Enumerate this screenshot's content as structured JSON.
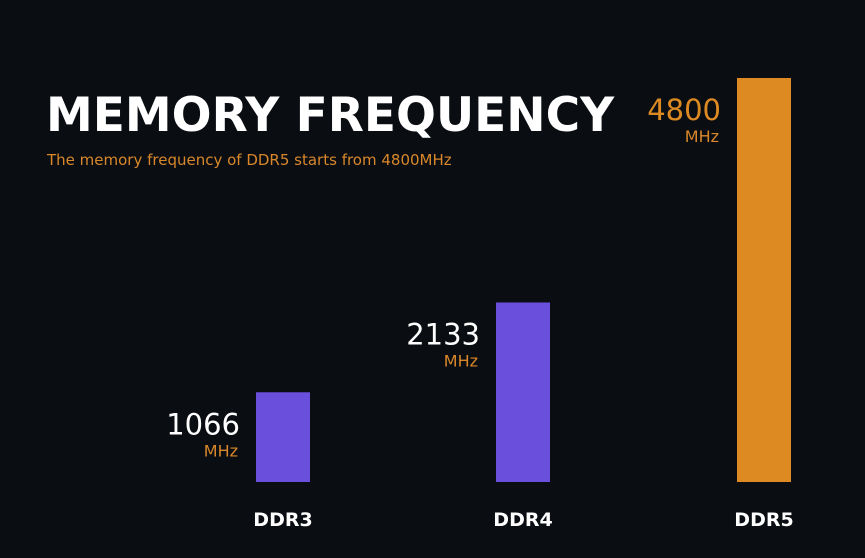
{
  "title": "MEMORY FREQUENCY",
  "subtitle": "The memory frequency of DDR5 starts from 4800MHz",
  "colors": {
    "background": "#0a0e13",
    "purple": "#6a4fdc",
    "orange": "#dd8a22",
    "white": "#ffffff"
  },
  "chart_data": {
    "type": "bar",
    "categories": [
      "DDR3",
      "DDR4",
      "DDR5"
    ],
    "values": [
      1066,
      2133,
      4800
    ],
    "data_labels": [
      "1066",
      "2133",
      "4800"
    ],
    "unit_label": "MHz",
    "bar_colors": [
      "#6a4fdc",
      "#6a4fdc",
      "#dd8a22"
    ],
    "value_label_colors": [
      "#ffffff",
      "#ffffff",
      "#dd8a22"
    ],
    "ylim": [
      0,
      4800
    ],
    "grid": false,
    "legend": "none"
  }
}
